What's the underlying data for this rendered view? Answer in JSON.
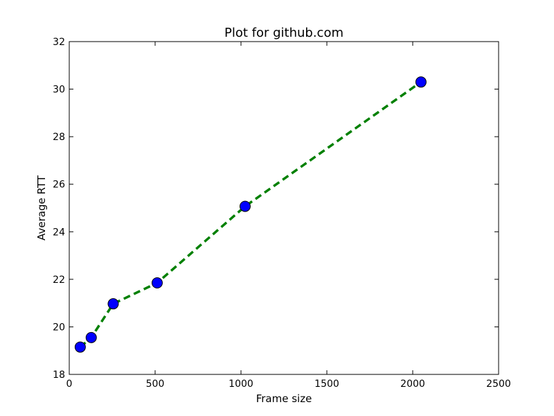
{
  "chart_data": {
    "type": "line",
    "title": "Plot for github.com",
    "xlabel": "Frame size",
    "ylabel": "Average RTT",
    "xlim": [
      0,
      2500
    ],
    "ylim": [
      18,
      32
    ],
    "xticks": [
      0,
      500,
      1000,
      1500,
      2000,
      2500
    ],
    "yticks": [
      18,
      20,
      22,
      24,
      26,
      28,
      30,
      32
    ],
    "xtick_labels": [
      "0",
      "500",
      "1000",
      "1500",
      "2000",
      "2500"
    ],
    "ytick_labels": [
      "18",
      "20",
      "22",
      "24",
      "26",
      "28",
      "30",
      "32"
    ],
    "grid": false,
    "series": [
      {
        "x": [
          64,
          128,
          256,
          512,
          1024,
          2048
        ],
        "y": [
          19.15,
          19.55,
          20.97,
          21.85,
          25.07,
          30.3
        ],
        "line_color": "#008000",
        "line_style": "dashed",
        "marker": "circle",
        "marker_color": "#0000ff"
      }
    ]
  }
}
